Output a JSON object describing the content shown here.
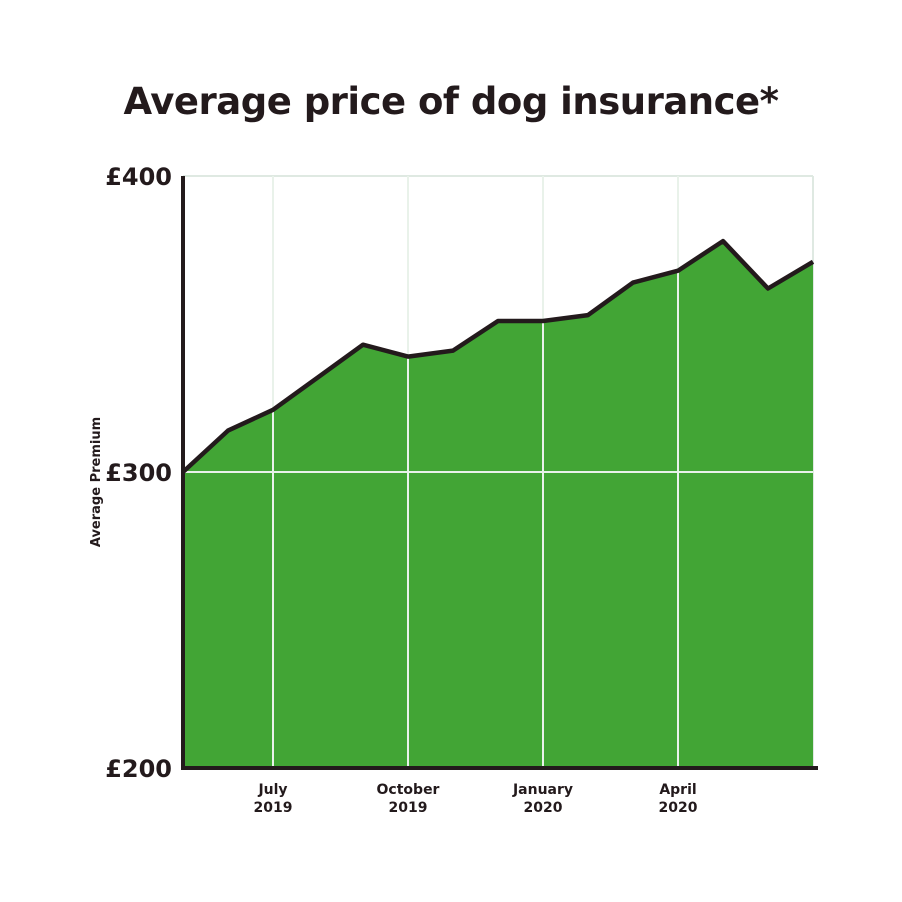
{
  "chart_data": {
    "type": "area",
    "title": "Average price of dog insurance*",
    "ylabel": "Average Premium",
    "xlabel": "",
    "ylim": [
      200,
      400
    ],
    "yticks": [
      "£200",
      "£300",
      "£400"
    ],
    "ytick_values": [
      200,
      300,
      400
    ],
    "xticks": [
      {
        "line1": "July",
        "line2": "2019",
        "index": 2
      },
      {
        "line1": "October",
        "line2": "2019",
        "index": 5
      },
      {
        "line1": "January",
        "line2": "2020",
        "index": 8
      },
      {
        "line1": "April",
        "line2": "2020",
        "index": 11
      }
    ],
    "grid": true,
    "colors": {
      "fill": "#42a535",
      "line": "#231a1c",
      "grid": "#dfe9e2"
    },
    "series": [
      {
        "values": [
          300,
          314,
          321,
          332,
          343,
          339,
          341,
          351,
          351,
          353,
          364,
          368,
          378,
          362,
          371
        ]
      }
    ]
  }
}
